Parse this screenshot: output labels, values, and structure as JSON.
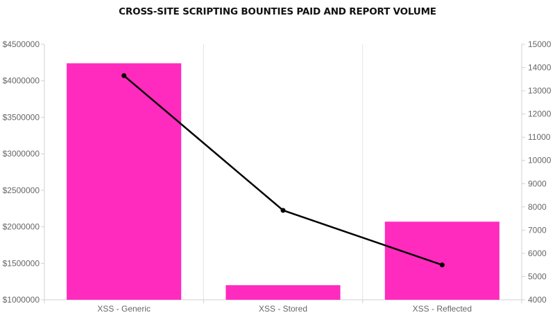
{
  "chart_data": {
    "type": "bar",
    "title": "CROSS-SITE SCRIPTING BOUNTIES PAID AND REPORT VOLUME",
    "categories": [
      "XSS - Generic",
      "XSS - Stored",
      "XSS - Reflected"
    ],
    "series": [
      {
        "type": "bar",
        "axis": "left",
        "values": [
          4240000,
          1200000,
          2070000
        ],
        "color": "#ff2bbe"
      },
      {
        "type": "line",
        "axis": "right",
        "values": [
          13650,
          7850,
          5500
        ],
        "color": "#000000"
      }
    ],
    "y_left": {
      "min": 1000000,
      "max": 4500000,
      "step": 500000,
      "ticks": [
        "$1000000",
        "$1500000",
        "$2000000",
        "$2500000",
        "$3000000",
        "$3500000",
        "$4000000",
        "$4500000"
      ]
    },
    "y_right": {
      "min": 4000,
      "max": 15000,
      "step": 1000,
      "ticks": [
        "4000",
        "5000",
        "6000",
        "7000",
        "8000",
        "9000",
        "10000",
        "11000",
        "12000",
        "13000",
        "14000",
        "15000"
      ]
    },
    "grid": "vertical",
    "legend": "none"
  }
}
